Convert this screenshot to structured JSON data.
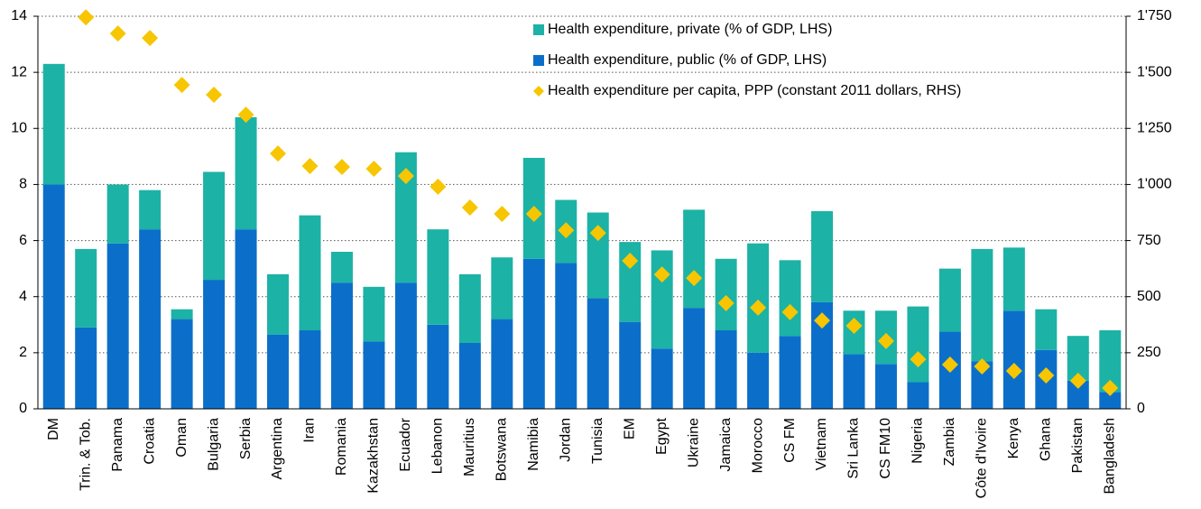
{
  "chart_data": {
    "type": "bar",
    "stacked": true,
    "categories": [
      "DM",
      "Trin. & Tob.",
      "Panama",
      "Croatia",
      "Oman",
      "Bulgaria",
      "Serbia",
      "Argentina",
      "Iran",
      "Romania",
      "Kazakhstan",
      "Ecuador",
      "Lebanon",
      "Mauritius",
      "Botswana",
      "Namibia",
      "Jordan",
      "Tunisia",
      "EM",
      "Egypt",
      "Ukraine",
      "Jamaica",
      "Morocco",
      "CS FM",
      "Vietnam",
      "Sri Lanka",
      "CS FM10",
      "Nigeria",
      "Zambia",
      "Côte d'Ivoire",
      "Kenya",
      "Ghana",
      "Pakistan",
      "Bangladesh"
    ],
    "series": [
      {
        "name": "Health expenditure, public (% of GDP, LHS)",
        "color": "#0b6fca",
        "values": [
          8.0,
          2.9,
          5.9,
          6.4,
          3.2,
          4.6,
          6.4,
          2.65,
          2.8,
          4.5,
          2.4,
          4.5,
          3.0,
          2.35,
          3.2,
          5.35,
          5.2,
          3.95,
          3.1,
          2.15,
          3.6,
          2.8,
          2.0,
          2.6,
          3.8,
          1.95,
          1.6,
          0.95,
          2.75,
          1.7,
          3.5,
          2.1,
          1.0,
          0.6
        ]
      },
      {
        "name": "Health expenditure, private (% of GDP, LHS)",
        "color": "#1cb2a6",
        "values": [
          4.3,
          2.8,
          2.1,
          1.4,
          0.35,
          3.85,
          4.0,
          2.15,
          4.1,
          1.1,
          1.95,
          4.65,
          3.4,
          2.45,
          2.2,
          3.6,
          2.25,
          3.05,
          2.85,
          3.5,
          3.5,
          2.55,
          3.9,
          2.7,
          3.25,
          1.55,
          1.9,
          2.7,
          2.25,
          4.0,
          2.25,
          1.45,
          1.6,
          2.2
        ]
      },
      {
        "name": "Health expenditure per capita, PPP (constant 2011 dollars, RHS)",
        "color": "#f7c600",
        "type": "scatter",
        "axis": "y2",
        "values": [
          null,
          1745,
          1673,
          1653,
          1444,
          1400,
          1311,
          1138,
          1082,
          1078,
          1070,
          1038,
          990,
          897,
          869,
          869,
          796,
          784,
          660,
          599,
          583,
          471,
          451,
          431,
          394,
          370,
          302,
          221,
          197,
          189,
          169,
          149,
          125,
          93
        ]
      }
    ],
    "legend_order": [
      1,
      0,
      2
    ],
    "ylim": [
      0,
      14
    ],
    "yticks": [
      0,
      2,
      4,
      6,
      8,
      10,
      12,
      14
    ],
    "y2lim": [
      0,
      1750
    ],
    "y2ticks": [
      0,
      250,
      500,
      750,
      {
        "value": 1000,
        "label": "1'000"
      },
      {
        "value": 1250,
        "label": "1'250"
      },
      {
        "value": 1500,
        "label": "1'500"
      },
      {
        "value": 1750,
        "label": "1'750"
      }
    ],
    "grid": true
  }
}
